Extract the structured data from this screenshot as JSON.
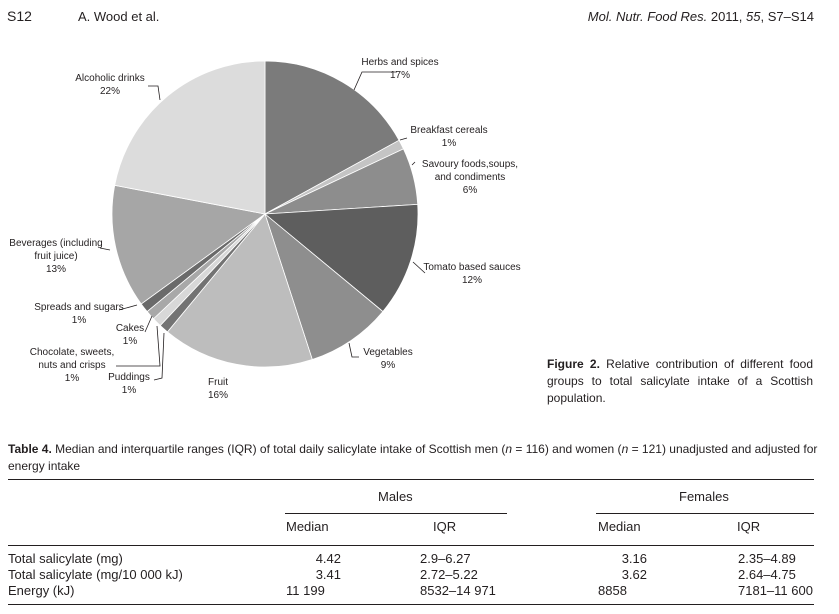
{
  "header": {
    "page_number": "S12",
    "authors": "A. Wood et al.",
    "journal_prefix": "Mol. Nutr. Food Res.",
    "journal_year": " 2011, ",
    "journal_volume": "55",
    "journal_pages": ", S7–S14"
  },
  "chart_data": {
    "type": "pie",
    "start_angle": "12 o'clock",
    "direction": "clockwise",
    "slices": [
      {
        "label": "Herbs and spices",
        "value": 17,
        "value_label": "17%",
        "color": "#7b7b7b"
      },
      {
        "label": "Breakfast cereals",
        "value": 1,
        "value_label": "1%",
        "color": "#c4c4c4"
      },
      {
        "label": "Savoury foods,soups, and condiments",
        "label_lines": [
          "Savoury foods,soups,",
          "and condiments"
        ],
        "value": 6,
        "value_label": "6%",
        "color": "#8d8d8d"
      },
      {
        "label": "Tomato based sauces",
        "value": 12,
        "value_label": "12%",
        "color": "#5e5e5e"
      },
      {
        "label": "Vegetables",
        "value": 9,
        "value_label": "9%",
        "color": "#8e8e8e"
      },
      {
        "label": "Fruit",
        "value": 16,
        "value_label": "16%",
        "color": "#bdbdbd"
      },
      {
        "label": "Puddings",
        "value": 1,
        "value_label": "1%",
        "color": "#737373"
      },
      {
        "label": "Chocolate, sweets, nuts and crisps",
        "label_lines": [
          "Chocolate, sweets,",
          "nuts and crisps"
        ],
        "value": 1,
        "value_label": "1%",
        "color": "#d8d8d8"
      },
      {
        "label": "Cakes",
        "value": 1,
        "value_label": "1%",
        "color": "#a8a8a8"
      },
      {
        "label": "Spreads and sugars",
        "value": 1,
        "value_label": "1%",
        "color": "#6a6a6a"
      },
      {
        "label": "Beverages (including fruit juice)",
        "label_lines": [
          "Beverages (including",
          "fruit juice)"
        ],
        "value": 13,
        "value_label": "13%",
        "color": "#a6a6a6"
      },
      {
        "label": "Alcoholic drinks",
        "value": 22,
        "value_label": "22%",
        "color": "#dcdcdc"
      }
    ]
  },
  "figure_caption": {
    "label": "Figure 2.",
    "text": " Relative contribution of different food groups to total salicylate intake of a Scottish population."
  },
  "table": {
    "caption_label": "Table 4.",
    "caption_part1": " Median and interquartile ranges (IQR) of total daily salicylate intake of Scottish men (",
    "caption_n1_var": "n",
    "caption_n1": " = 116) and women (",
    "caption_n2_var": "n",
    "caption_n2": " = 121) unadjusted and adjusted for energy intake",
    "group_headers": [
      "Males",
      "Females"
    ],
    "column_headers": [
      "Median",
      "IQR",
      "Median",
      "IQR"
    ],
    "rows": [
      {
        "label": "Total salicylate (mg)",
        "cells": [
          "4.42",
          "2.9–6.27",
          "3.16",
          "2.35–4.89"
        ]
      },
      {
        "label": "Total salicylate (mg/10 000 kJ)",
        "cells": [
          "3.41",
          "2.72–5.22",
          "3.62",
          "2.64–4.75"
        ]
      },
      {
        "label": "Energy (kJ)",
        "cells": [
          "11 199",
          "8532–14 971",
          "8858",
          "7181–11 600"
        ]
      }
    ]
  }
}
